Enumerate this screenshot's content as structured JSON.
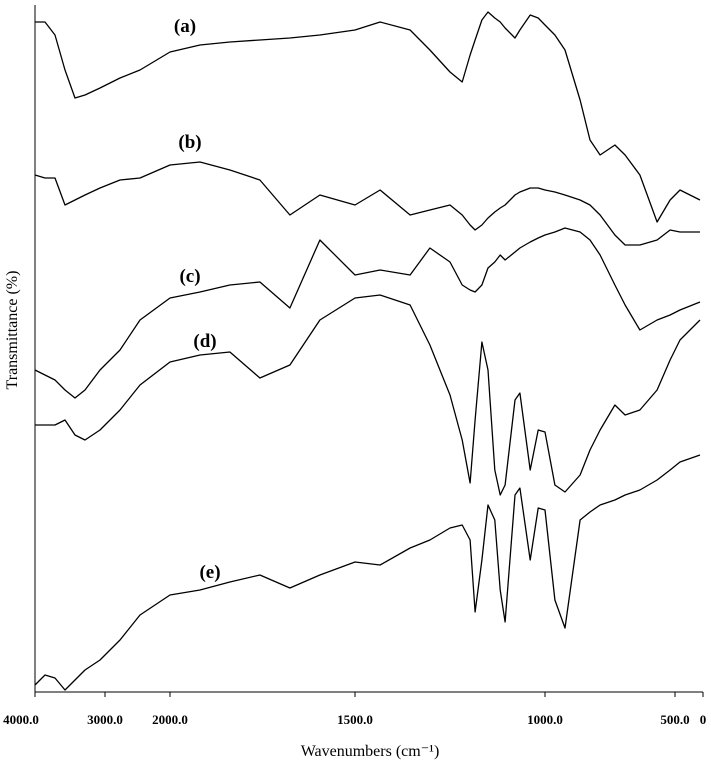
{
  "chart_data": {
    "type": "line",
    "xlabel": "Wavenumbers (cm⁻¹)",
    "ylabel": "Transmittance (%)",
    "xlim": [
      4000,
      0
    ],
    "xticks": [
      {
        "value": 4000,
        "label": "4000.0"
      },
      {
        "value": 3000,
        "label": "3000.0"
      },
      {
        "value": 2000,
        "label": "2000.0"
      },
      {
        "value": 1500,
        "label": "1500.0"
      },
      {
        "value": 1000,
        "label": "1000.0"
      },
      {
        "value": 500,
        "label": "500.0"
      },
      0
    ],
    "ylim": [
      0,
      695
    ],
    "x": [
      4000,
      3857,
      3714,
      3571,
      3429,
      3286,
      3071,
      2769,
      2462,
      2000,
      1919,
      1838,
      1757,
      1676,
      1595,
      1500,
      1434,
      1355,
      1303,
      1250,
      1218,
      1197,
      1184,
      1166,
      1150,
      1132,
      1118,
      1105,
      1079,
      1066,
      1039,
      1018,
      1000,
      962,
      923,
      865,
      827,
      788,
      731,
      692,
      635,
      569,
      519,
      411,
      54
    ],
    "series": [
      {
        "name": "(a)",
        "color": "#000000",
        "values": [
          678,
          678,
          665,
          630,
          602,
          605,
          612,
          622,
          630,
          648,
          655,
          658,
          660,
          662,
          665,
          670,
          678,
          670,
          650,
          628,
          618,
          645,
          660,
          680,
          688,
          682,
          678,
          672,
          662,
          670,
          685,
          682,
          675,
          665,
          650,
          600,
          560,
          545,
          555,
          545,
          525,
          478,
          500,
          510,
          500
        ]
      },
      {
        "name": "(b)",
        "color": "#000000",
        "values": [
          525,
          522,
          522,
          495,
          500,
          505,
          512,
          520,
          522,
          535,
          538,
          530,
          520,
          485,
          505,
          495,
          510,
          485,
          490,
          495,
          485,
          475,
          470,
          475,
          482,
          488,
          492,
          495,
          505,
          508,
          512,
          512,
          510,
          508,
          505,
          500,
          495,
          485,
          465,
          455,
          455,
          460,
          470,
          468,
          468
        ]
      },
      {
        "name": "(c)",
        "color": "#000000",
        "values": [
          330,
          325,
          320,
          310,
          302,
          310,
          330,
          350,
          380,
          402,
          408,
          415,
          418,
          392,
          460,
          425,
          430,
          425,
          452,
          438,
          415,
          410,
          408,
          415,
          432,
          438,
          445,
          440,
          448,
          452,
          458,
          462,
          465,
          468,
          472,
          468,
          460,
          445,
          415,
          395,
          370,
          380,
          385,
          390,
          398
        ]
      },
      {
        "name": "(d)",
        "color": "#000000",
        "values": [
          275,
          275,
          275,
          280,
          265,
          260,
          270,
          290,
          315,
          338,
          345,
          348,
          322,
          335,
          380,
          402,
          405,
          395,
          355,
          305,
          260,
          217,
          280,
          358,
          330,
          230,
          205,
          215,
          300,
          307,
          230,
          270,
          268,
          215,
          208,
          225,
          250,
          270,
          295,
          285,
          290,
          310,
          340,
          360,
          380
        ]
      },
      {
        "name": "(e)",
        "color": "#000000",
        "values": [
          15,
          25,
          22,
          10,
          20,
          30,
          40,
          60,
          85,
          105,
          110,
          118,
          125,
          112,
          125,
          138,
          135,
          152,
          160,
          172,
          175,
          160,
          88,
          140,
          195,
          180,
          110,
          78,
          205,
          212,
          140,
          192,
          190,
          100,
          72,
          180,
          188,
          195,
          200,
          205,
          210,
          220,
          230,
          238,
          245
        ]
      }
    ]
  }
}
